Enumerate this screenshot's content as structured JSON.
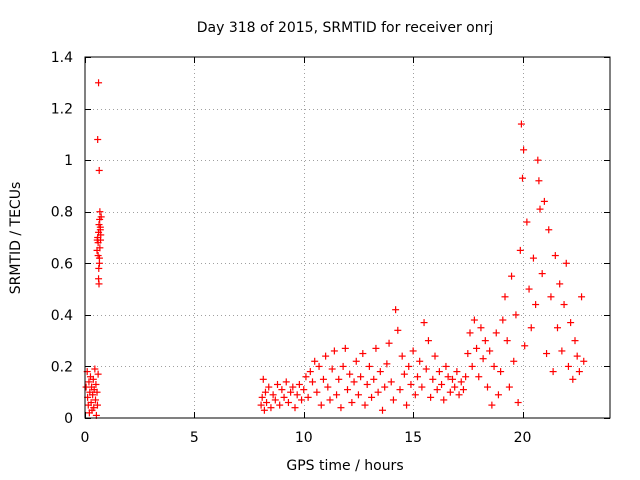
{
  "chart_data": {
    "type": "scatter",
    "title": "Day 318 of 2015, SRMTID for receiver onrj",
    "xlabel": "GPS time / hours",
    "ylabel": "SRMTID / TECUs",
    "xlim": [
      0,
      24
    ],
    "ylim": [
      0,
      1.4
    ],
    "xticks": [
      0,
      5,
      10,
      15,
      20
    ],
    "yticks": [
      0,
      0.2,
      0.4,
      0.6,
      0.8,
      1,
      1.2,
      1.4
    ],
    "xtick_labels": [
      "0",
      "5",
      "10",
      "15",
      "20"
    ],
    "ytick_labels": [
      "0",
      "0.2",
      "0.4",
      "0.6",
      "0.8",
      "1",
      "1.2",
      "1.4"
    ],
    "grid": true,
    "marker": "+",
    "color": "#ff0000",
    "series": [
      {
        "name": "SRMTID",
        "points": [
          [
            0.05,
            0.12
          ],
          [
            0.1,
            0.18
          ],
          [
            0.12,
            0.08
          ],
          [
            0.15,
            0.05
          ],
          [
            0.18,
            0.14
          ],
          [
            0.2,
            0.02
          ],
          [
            0.22,
            0.1
          ],
          [
            0.25,
            0.16
          ],
          [
            0.28,
            0.06
          ],
          [
            0.3,
            0.12
          ],
          [
            0.32,
            0.03
          ],
          [
            0.35,
            0.09
          ],
          [
            0.38,
            0.15
          ],
          [
            0.4,
            0.04
          ],
          [
            0.42,
            0.11
          ],
          [
            0.45,
            0.19
          ],
          [
            0.48,
            0.07
          ],
          [
            0.5,
            0.13
          ],
          [
            0.52,
            0.01
          ],
          [
            0.55,
            0.1
          ],
          [
            0.57,
            0.05
          ],
          [
            0.6,
            0.17
          ],
          [
            0.62,
            1.3
          ],
          [
            0.58,
            1.08
          ],
          [
            0.65,
            0.96
          ],
          [
            0.55,
            0.65
          ],
          [
            0.58,
            0.7
          ],
          [
            0.6,
            0.68
          ],
          [
            0.62,
            0.72
          ],
          [
            0.64,
            0.75
          ],
          [
            0.66,
            0.62
          ],
          [
            0.68,
            0.8
          ],
          [
            0.7,
            0.73
          ],
          [
            0.72,
            0.71
          ],
          [
            0.74,
            0.78
          ],
          [
            0.62,
            0.54
          ],
          [
            0.64,
            0.52
          ],
          [
            0.66,
            0.6
          ],
          [
            0.68,
            0.66
          ],
          [
            0.7,
            0.74
          ],
          [
            0.56,
            0.69
          ],
          [
            0.6,
            0.63
          ],
          [
            0.67,
            0.77
          ],
          [
            0.63,
            0.58
          ],
          [
            0.71,
            0.69
          ],
          [
            8.05,
            0.05
          ],
          [
            8.1,
            0.08
          ],
          [
            8.15,
            0.15
          ],
          [
            8.2,
            0.03
          ],
          [
            8.25,
            0.1
          ],
          [
            8.3,
            0.06
          ],
          [
            8.4,
            0.12
          ],
          [
            8.5,
            0.04
          ],
          [
            8.6,
            0.09
          ],
          [
            8.7,
            0.07
          ],
          [
            8.8,
            0.13
          ],
          [
            8.9,
            0.05
          ],
          [
            9.0,
            0.11
          ],
          [
            9.1,
            0.08
          ],
          [
            9.2,
            0.14
          ],
          [
            9.3,
            0.06
          ],
          [
            9.4,
            0.1
          ],
          [
            9.5,
            0.12
          ],
          [
            9.6,
            0.04
          ],
          [
            9.7,
            0.09
          ],
          [
            9.8,
            0.13
          ],
          [
            9.9,
            0.07
          ],
          [
            10.0,
            0.11
          ],
          [
            10.1,
            0.16
          ],
          [
            10.2,
            0.08
          ],
          [
            10.3,
            0.18
          ],
          [
            10.4,
            0.14
          ],
          [
            10.5,
            0.22
          ],
          [
            10.6,
            0.1
          ],
          [
            10.7,
            0.2
          ],
          [
            10.8,
            0.05
          ],
          [
            10.9,
            0.15
          ],
          [
            11.0,
            0.24
          ],
          [
            11.1,
            0.12
          ],
          [
            11.2,
            0.07
          ],
          [
            11.3,
            0.19
          ],
          [
            11.4,
            0.26
          ],
          [
            11.5,
            0.09
          ],
          [
            11.6,
            0.15
          ],
          [
            11.7,
            0.04
          ],
          [
            11.8,
            0.2
          ],
          [
            11.9,
            0.27
          ],
          [
            12.0,
            0.11
          ],
          [
            12.1,
            0.17
          ],
          [
            12.2,
            0.06
          ],
          [
            12.3,
            0.14
          ],
          [
            12.4,
            0.22
          ],
          [
            12.5,
            0.09
          ],
          [
            12.6,
            0.16
          ],
          [
            12.7,
            0.25
          ],
          [
            12.8,
            0.05
          ],
          [
            12.9,
            0.13
          ],
          [
            13.0,
            0.2
          ],
          [
            13.1,
            0.08
          ],
          [
            13.2,
            0.15
          ],
          [
            13.3,
            0.27
          ],
          [
            13.4,
            0.1
          ],
          [
            13.5,
            0.18
          ],
          [
            13.6,
            0.03
          ],
          [
            13.7,
            0.12
          ],
          [
            13.8,
            0.21
          ],
          [
            13.9,
            0.29
          ],
          [
            14.0,
            0.14
          ],
          [
            14.1,
            0.07
          ],
          [
            14.2,
            0.42
          ],
          [
            14.3,
            0.34
          ],
          [
            14.4,
            0.11
          ],
          [
            14.5,
            0.24
          ],
          [
            14.6,
            0.17
          ],
          [
            14.7,
            0.05
          ],
          [
            14.8,
            0.2
          ],
          [
            14.9,
            0.13
          ],
          [
            15.0,
            0.26
          ],
          [
            15.1,
            0.09
          ],
          [
            15.2,
            0.16
          ],
          [
            15.3,
            0.22
          ],
          [
            15.4,
            0.12
          ],
          [
            15.5,
            0.37
          ],
          [
            15.6,
            0.19
          ],
          [
            15.7,
            0.3
          ],
          [
            15.8,
            0.08
          ],
          [
            15.9,
            0.15
          ],
          [
            16.0,
            0.24
          ],
          [
            16.1,
            0.11
          ],
          [
            16.2,
            0.18
          ],
          [
            16.3,
            0.13
          ],
          [
            16.4,
            0.07
          ],
          [
            16.5,
            0.2
          ],
          [
            16.6,
            0.16
          ],
          [
            16.7,
            0.1
          ],
          [
            16.8,
            0.15
          ],
          [
            16.9,
            0.12
          ],
          [
            17.0,
            0.18
          ],
          [
            17.1,
            0.09
          ],
          [
            17.2,
            0.14
          ],
          [
            17.3,
            0.11
          ],
          [
            17.4,
            0.16
          ],
          [
            17.5,
            0.25
          ],
          [
            17.6,
            0.33
          ],
          [
            17.7,
            0.2
          ],
          [
            17.8,
            0.38
          ],
          [
            17.9,
            0.27
          ],
          [
            18.0,
            0.16
          ],
          [
            18.1,
            0.35
          ],
          [
            18.2,
            0.23
          ],
          [
            18.3,
            0.3
          ],
          [
            18.4,
            0.12
          ],
          [
            18.5,
            0.26
          ],
          [
            18.6,
            0.05
          ],
          [
            18.7,
            0.2
          ],
          [
            18.8,
            0.33
          ],
          [
            18.9,
            0.09
          ],
          [
            19.0,
            0.18
          ],
          [
            19.1,
            0.38
          ],
          [
            19.2,
            0.47
          ],
          [
            19.3,
            0.3
          ],
          [
            19.4,
            0.12
          ],
          [
            19.5,
            0.55
          ],
          [
            19.6,
            0.22
          ],
          [
            19.7,
            0.4
          ],
          [
            19.8,
            0.06
          ],
          [
            19.9,
            0.65
          ],
          [
            20.0,
            0.93
          ],
          [
            19.95,
            1.14
          ],
          [
            20.05,
            1.04
          ],
          [
            20.1,
            0.28
          ],
          [
            20.2,
            0.76
          ],
          [
            20.3,
            0.5
          ],
          [
            20.4,
            0.35
          ],
          [
            20.5,
            0.62
          ],
          [
            20.6,
            0.44
          ],
          [
            20.7,
            1.0
          ],
          [
            20.75,
            0.92
          ],
          [
            20.8,
            0.81
          ],
          [
            20.9,
            0.56
          ],
          [
            21.0,
            0.84
          ],
          [
            21.1,
            0.25
          ],
          [
            21.2,
            0.73
          ],
          [
            21.3,
            0.47
          ],
          [
            21.4,
            0.18
          ],
          [
            21.5,
            0.63
          ],
          [
            21.6,
            0.35
          ],
          [
            21.7,
            0.52
          ],
          [
            21.8,
            0.26
          ],
          [
            21.9,
            0.44
          ],
          [
            22.0,
            0.6
          ],
          [
            22.1,
            0.2
          ],
          [
            22.2,
            0.37
          ],
          [
            22.3,
            0.15
          ],
          [
            22.4,
            0.3
          ],
          [
            22.5,
            0.24
          ],
          [
            22.6,
            0.18
          ],
          [
            22.7,
            0.47
          ],
          [
            22.8,
            0.22
          ]
        ]
      }
    ]
  }
}
